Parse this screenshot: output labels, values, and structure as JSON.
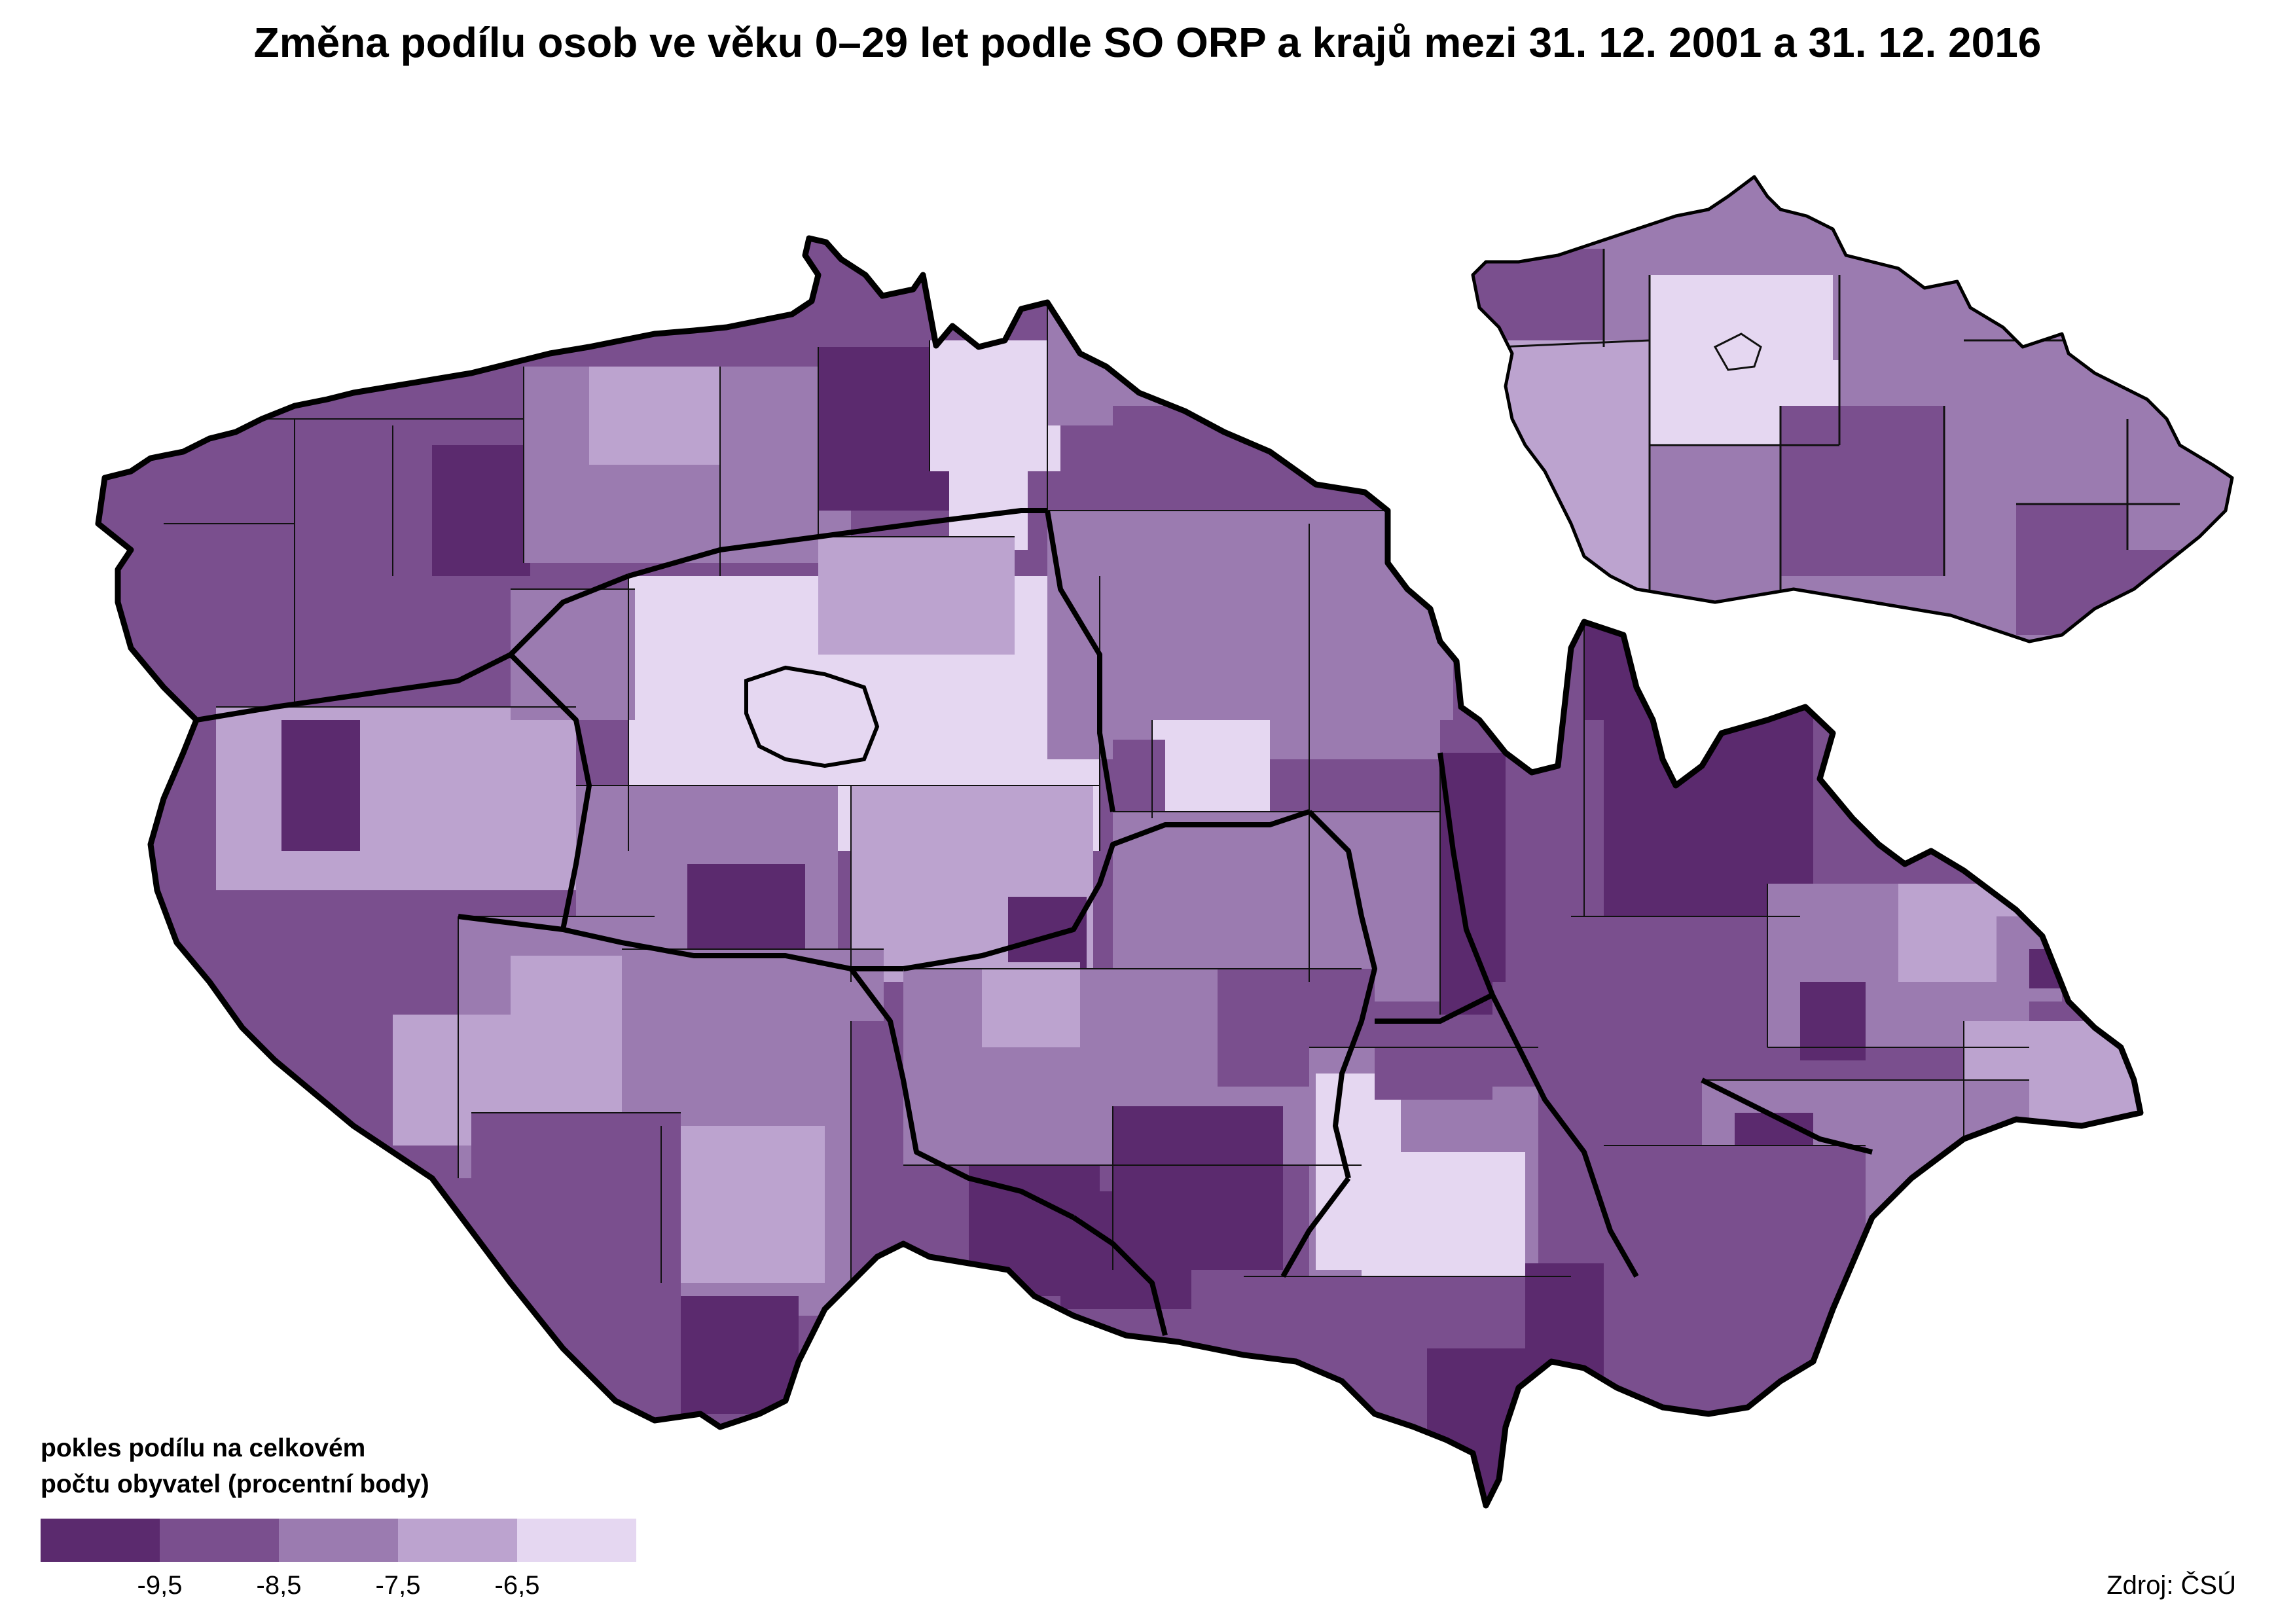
{
  "title": "Změna podílu osob ve věku 0–29 let podle SO ORP a krajů mezi 31. 12. 2001 a 31. 12. 2016",
  "legend": {
    "title_line1": "pokles podílu na celkovém",
    "title_line2": "počtu obyvatel (procentní body)",
    "classes": [
      {
        "color": "#5b2a6e"
      },
      {
        "color": "#7a4f8e"
      },
      {
        "color": "#9b7bb0"
      },
      {
        "color": "#bca3cf"
      },
      {
        "color": "#e5d7f1"
      }
    ],
    "ticks": [
      "-9,5",
      "-8,5",
      "-7,5",
      "-6,5"
    ]
  },
  "source": "Zdroj: ČSÚ",
  "colors": {
    "outline": "#000000",
    "district_line": "#111111",
    "background": "#ffffff"
  }
}
